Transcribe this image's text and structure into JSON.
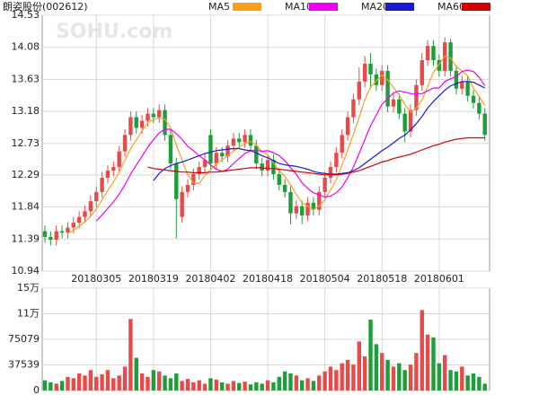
{
  "chart_data": [
    {
      "type": "candlestick",
      "title": "朗姿股份(002612)",
      "watermark": "SOHU.com",
      "up_color": "#e84a4a",
      "down_color": "#1e9e3a",
      "grid": true,
      "categories": [
        null,
        null,
        null,
        null,
        null,
        null,
        null,
        null,
        null,
        "20180305",
        null,
        null,
        null,
        null,
        null,
        null,
        null,
        null,
        null,
        "20180319",
        null,
        null,
        null,
        null,
        null,
        null,
        null,
        null,
        null,
        "20180402",
        null,
        null,
        null,
        null,
        null,
        null,
        null,
        null,
        null,
        "20180418",
        null,
        null,
        null,
        null,
        null,
        null,
        null,
        null,
        null,
        "20180504",
        null,
        null,
        null,
        null,
        null,
        null,
        null,
        null,
        null,
        "20180518",
        null,
        null,
        null,
        null,
        null,
        null,
        null,
        null,
        null,
        "20180601",
        null,
        null,
        null,
        null,
        null,
        null,
        null,
        null
      ],
      "open": [
        11.5,
        11.42,
        11.38,
        11.5,
        11.48,
        11.55,
        11.62,
        11.7,
        11.78,
        11.92,
        12.05,
        12.25,
        12.35,
        12.4,
        12.62,
        12.85,
        13.1,
        12.95,
        13.05,
        13.15,
        13.1,
        13.2,
        12.85,
        12.45,
        11.7,
        12.05,
        12.15,
        12.3,
        12.4,
        12.85,
        12.45,
        12.6,
        12.55,
        12.7,
        12.8,
        12.75,
        12.85,
        12.7,
        12.45,
        12.35,
        12.5,
        12.3,
        12.15,
        12.05,
        11.75,
        11.85,
        11.72,
        11.9,
        11.8,
        12.05,
        12.25,
        12.4,
        12.6,
        12.85,
        13.1,
        13.35,
        13.6,
        13.85,
        13.7,
        13.55,
        13.75,
        13.25,
        13.35,
        13.15,
        12.9,
        13.2,
        13.55,
        13.9,
        14.1,
        13.9,
        13.75,
        14.15,
        13.75,
        13.5,
        13.6,
        13.4,
        13.3,
        13.15
      ],
      "high": [
        11.58,
        11.5,
        11.58,
        11.58,
        11.63,
        11.7,
        11.78,
        11.86,
        12.0,
        12.13,
        12.33,
        12.43,
        12.48,
        12.7,
        12.93,
        13.18,
        13.18,
        13.13,
        13.23,
        13.23,
        13.28,
        13.28,
        12.93,
        12.53,
        12.13,
        12.23,
        12.38,
        12.48,
        12.58,
        12.93,
        12.68,
        12.68,
        12.78,
        12.88,
        12.88,
        12.93,
        12.93,
        12.78,
        12.53,
        12.58,
        12.58,
        12.38,
        12.23,
        12.13,
        11.93,
        11.93,
        11.98,
        11.98,
        12.13,
        12.33,
        12.48,
        12.68,
        12.93,
        13.18,
        13.43,
        13.8,
        13.96,
        14.0,
        13.78,
        13.83,
        13.83,
        13.43,
        13.43,
        13.23,
        13.28,
        13.63,
        14.0,
        14.18,
        14.18,
        13.98,
        14.22,
        14.2,
        13.83,
        13.68,
        13.68,
        13.48,
        13.38,
        13.23
      ],
      "low": [
        11.34,
        11.3,
        11.3,
        11.4,
        11.4,
        11.47,
        11.54,
        11.62,
        11.7,
        11.84,
        11.97,
        12.17,
        12.27,
        12.32,
        12.54,
        12.77,
        12.87,
        12.87,
        12.97,
        13.02,
        13.02,
        12.77,
        12.37,
        11.4,
        11.62,
        11.97,
        12.07,
        12.22,
        12.32,
        12.37,
        12.37,
        12.47,
        12.47,
        12.62,
        12.67,
        12.67,
        12.62,
        12.37,
        12.27,
        12.27,
        12.22,
        12.07,
        11.97,
        11.6,
        11.67,
        11.6,
        11.64,
        11.72,
        11.72,
        11.97,
        12.17,
        12.32,
        12.52,
        12.77,
        13.02,
        13.27,
        13.52,
        13.5,
        13.47,
        13.47,
        13.17,
        13.17,
        13.07,
        12.75,
        12.82,
        13.12,
        13.47,
        13.82,
        13.82,
        13.67,
        13.67,
        13.67,
        13.42,
        13.42,
        13.32,
        13.22,
        13.07,
        12.77
      ],
      "close": [
        11.42,
        11.38,
        11.5,
        11.48,
        11.55,
        11.62,
        11.7,
        11.78,
        11.92,
        12.05,
        12.25,
        12.35,
        12.4,
        12.62,
        12.85,
        13.1,
        12.95,
        13.05,
        13.15,
        13.1,
        13.2,
        12.85,
        12.45,
        11.95,
        12.05,
        12.15,
        12.3,
        12.4,
        12.5,
        12.45,
        12.6,
        12.55,
        12.7,
        12.8,
        12.75,
        12.85,
        12.7,
        12.45,
        12.35,
        12.5,
        12.3,
        12.15,
        12.05,
        11.75,
        11.85,
        11.72,
        11.9,
        11.8,
        12.05,
        12.25,
        12.4,
        12.6,
        12.85,
        13.1,
        13.35,
        13.6,
        13.85,
        13.7,
        13.55,
        13.75,
        13.25,
        13.35,
        13.15,
        12.9,
        13.2,
        13.55,
        13.9,
        14.1,
        13.9,
        13.75,
        14.15,
        13.75,
        13.5,
        13.6,
        13.4,
        13.3,
        13.15,
        12.85
      ],
      "series": [
        {
          "name": "MA5",
          "color": "#f5a01e",
          "values": [
            null,
            null,
            null,
            null,
            11.47,
            11.51,
            11.57,
            11.63,
            11.71,
            11.81,
            11.94,
            12.07,
            12.19,
            12.33,
            12.49,
            12.66,
            12.78,
            12.91,
            13.02,
            13.07,
            13.09,
            13.07,
            12.95,
            12.71,
            12.5,
            12.29,
            12.18,
            12.17,
            12.28,
            12.36,
            12.45,
            12.5,
            12.56,
            12.62,
            12.68,
            12.73,
            12.76,
            12.71,
            12.62,
            12.57,
            12.46,
            12.35,
            12.27,
            12.15,
            12.02,
            11.9,
            11.85,
            11.8,
            11.86,
            11.94,
            12.08,
            12.22,
            12.43,
            12.64,
            12.86,
            13.1,
            13.35,
            13.52,
            13.61,
            13.69,
            13.62,
            13.52,
            13.41,
            13.28,
            13.17,
            13.23,
            13.34,
            13.53,
            13.73,
            13.84,
            13.96,
            13.93,
            13.81,
            13.75,
            13.68,
            13.51,
            13.39,
            13.26
          ]
        },
        {
          "name": "MA10",
          "color": "#ee00ee",
          "values": [
            null,
            null,
            null,
            null,
            null,
            null,
            null,
            null,
            null,
            11.64,
            11.73,
            11.82,
            11.91,
            12.02,
            12.15,
            12.3,
            12.43,
            12.55,
            12.68,
            12.78,
            12.88,
            12.93,
            12.93,
            12.87,
            12.79,
            12.69,
            12.63,
            12.56,
            12.5,
            12.43,
            12.37,
            12.34,
            12.37,
            12.45,
            12.52,
            12.59,
            12.63,
            12.64,
            12.62,
            12.63,
            12.6,
            12.56,
            12.49,
            12.39,
            12.3,
            12.18,
            12.1,
            12.04,
            12.01,
            11.98,
            11.99,
            12.04,
            12.12,
            12.25,
            12.4,
            12.59,
            12.79,
            12.98,
            13.13,
            13.28,
            13.36,
            13.44,
            13.47,
            13.45,
            13.43,
            13.43,
            13.43,
            13.47,
            13.51,
            13.51,
            13.6,
            13.64,
            13.67,
            13.74,
            13.76,
            13.74,
            13.66,
            13.54
          ]
        },
        {
          "name": "MA20",
          "color": "#1a1ad0",
          "values": [
            null,
            null,
            null,
            null,
            null,
            null,
            null,
            null,
            null,
            null,
            null,
            null,
            null,
            null,
            null,
            null,
            null,
            null,
            null,
            12.21,
            12.31,
            12.38,
            12.42,
            12.45,
            12.47,
            12.5,
            12.53,
            12.56,
            12.59,
            12.61,
            12.63,
            12.64,
            12.65,
            12.66,
            12.66,
            12.64,
            12.63,
            12.6,
            12.56,
            12.53,
            12.49,
            12.45,
            12.43,
            12.42,
            12.41,
            12.39,
            12.37,
            12.34,
            12.32,
            12.31,
            12.3,
            12.3,
            12.31,
            12.32,
            12.35,
            12.39,
            12.45,
            12.51,
            12.57,
            12.63,
            12.68,
            12.74,
            12.8,
            12.85,
            12.92,
            13.01,
            13.11,
            13.23,
            13.32,
            13.4,
            13.48,
            13.54,
            13.57,
            13.6,
            13.6,
            13.59,
            13.55,
            13.51
          ]
        },
        {
          "name": "MA60",
          "color": "#d40000",
          "values": [
            null,
            null,
            null,
            null,
            null,
            null,
            null,
            null,
            null,
            null,
            null,
            null,
            null,
            null,
            null,
            null,
            null,
            null,
            12.4,
            12.38,
            12.37,
            12.36,
            12.35,
            12.34,
            12.33,
            12.33,
            12.32,
            12.32,
            12.32,
            12.33,
            12.33,
            12.34,
            12.35,
            12.36,
            12.37,
            12.38,
            12.39,
            12.39,
            12.39,
            12.38,
            12.38,
            12.37,
            12.36,
            12.35,
            12.34,
            12.33,
            12.32,
            12.31,
            12.3,
            12.29,
            12.29,
            12.29,
            12.3,
            12.31,
            12.33,
            12.35,
            12.38,
            12.41,
            12.44,
            12.47,
            12.49,
            12.52,
            12.54,
            12.56,
            12.58,
            12.61,
            12.64,
            12.67,
            12.7,
            12.72,
            12.75,
            12.77,
            12.79,
            12.8,
            12.81,
            12.81,
            12.81,
            12.81
          ]
        }
      ],
      "ylim": [
        10.94,
        14.53
      ],
      "yticks": [
        10.94,
        11.39,
        11.84,
        12.29,
        12.73,
        13.18,
        13.63,
        14.08,
        14.53
      ]
    },
    {
      "type": "bar",
      "grid": true,
      "values": [
        15000,
        12000,
        10000,
        14000,
        20000,
        18000,
        25000,
        22000,
        30000,
        20000,
        24000,
        30000,
        18000,
        22000,
        35000,
        105000,
        48000,
        25000,
        20000,
        30000,
        28000,
        22000,
        18000,
        25000,
        14000,
        17000,
        12000,
        15000,
        10000,
        18000,
        16000,
        12000,
        10000,
        14000,
        11000,
        13000,
        9000,
        12000,
        10000,
        15000,
        12000,
        20000,
        28000,
        25000,
        22000,
        15000,
        18000,
        14000,
        22000,
        28000,
        35000,
        30000,
        40000,
        45000,
        38000,
        72000,
        50000,
        104000,
        68000,
        55000,
        45000,
        35000,
        40000,
        30000,
        38000,
        55000,
        118000,
        82000,
        78000,
        40000,
        52000,
        30000,
        28000,
        35000,
        22000,
        25000,
        20000,
        10000
      ],
      "ylim": [
        0,
        150158
      ],
      "yticks": [
        0,
        37539,
        75079,
        {
          "value": 112618,
          "label": "11万"
        },
        {
          "value": 150158,
          "label": "15万"
        }
      ]
    }
  ]
}
